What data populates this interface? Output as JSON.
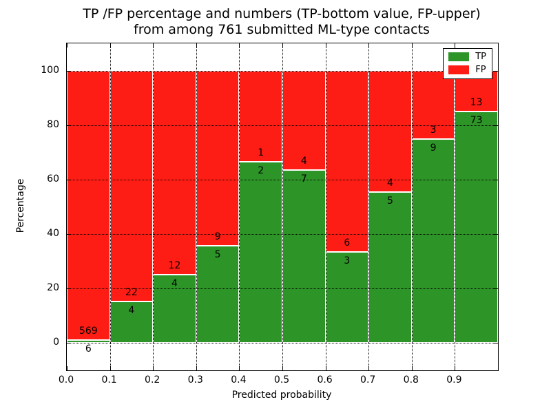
{
  "title": {
    "line1": "TP /FP percentage and numbers (TP-bottom value, FP-upper)",
    "line2": "from among 761 submitted ML-type contacts"
  },
  "axes": {
    "xlabel": "Predicted probability",
    "ylabel": "Percentage",
    "x_ticks": [
      "0.0",
      "0.1",
      "0.2",
      "0.3",
      "0.4",
      "0.5",
      "0.6",
      "0.7",
      "0.8",
      "0.9"
    ],
    "y_ticks": [
      0,
      20,
      40,
      60,
      80,
      100
    ],
    "xlim": [
      0.0,
      1.0
    ],
    "ylim": [
      -10,
      110
    ],
    "grid": "dotted"
  },
  "legend": {
    "position": "upper right",
    "items": [
      {
        "label": "TP"
      },
      {
        "label": "FP"
      }
    ]
  },
  "chart_data": {
    "type": "bar",
    "stacked": true,
    "normalized_to_percent": 100,
    "title": "TP /FP percentage and numbers (TP-bottom value, FP-upper) from among 761 submitted ML-type contacts",
    "xlabel": "Predicted probability",
    "ylabel": "Percentage",
    "xlim": [
      0.0,
      1.0
    ],
    "ylim": [
      -10,
      110
    ],
    "y_gridlines": [
      0,
      20,
      40,
      60,
      80,
      100
    ],
    "legend_position": "upper right",
    "bin_width": 0.1,
    "total_contacts": 761,
    "series": [
      {
        "name": "TP",
        "color": "#2d9428",
        "counts": [
          6,
          4,
          4,
          5,
          2,
          7,
          3,
          5,
          9,
          73
        ]
      },
      {
        "name": "FP",
        "color": "#fe1d14",
        "counts": [
          569,
          22,
          12,
          9,
          1,
          4,
          6,
          4,
          3,
          13
        ]
      }
    ],
    "bins": [
      {
        "range": "0.0-0.1",
        "x0": 0.0,
        "tp": 6,
        "fp": 569,
        "tp_pct": 1.0
      },
      {
        "range": "0.1-0.2",
        "x0": 0.1,
        "tp": 4,
        "fp": 22,
        "tp_pct": 15.4
      },
      {
        "range": "0.2-0.3",
        "x0": 0.2,
        "tp": 4,
        "fp": 12,
        "tp_pct": 25.0
      },
      {
        "range": "0.3-0.4",
        "x0": 0.3,
        "tp": 5,
        "fp": 9,
        "tp_pct": 35.7
      },
      {
        "range": "0.4-0.5",
        "x0": 0.4,
        "tp": 2,
        "fp": 1,
        "tp_pct": 66.7
      },
      {
        "range": "0.5-0.6",
        "x0": 0.5,
        "tp": 7,
        "fp": 4,
        "tp_pct": 63.6
      },
      {
        "range": "0.6-0.7",
        "x0": 0.6,
        "tp": 3,
        "fp": 6,
        "tp_pct": 33.3
      },
      {
        "range": "0.7-0.8",
        "x0": 0.7,
        "tp": 5,
        "fp": 4,
        "tp_pct": 55.6
      },
      {
        "range": "0.8-0.9",
        "x0": 0.8,
        "tp": 9,
        "fp": 3,
        "tp_pct": 75.0
      },
      {
        "range": "0.9-1.0",
        "x0": 0.9,
        "tp": 73,
        "fp": 13,
        "tp_pct": 84.9
      }
    ]
  }
}
